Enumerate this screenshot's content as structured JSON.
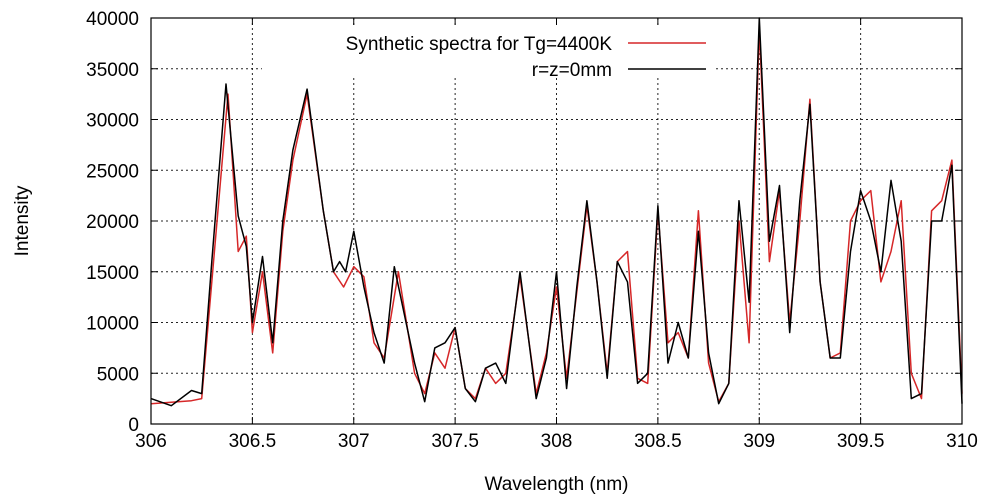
{
  "chart_data": {
    "type": "line",
    "title": "",
    "xlabel": "Wavelength (nm)",
    "ylabel": "Intensity",
    "xlim": [
      306,
      310
    ],
    "ylim": [
      0,
      40000
    ],
    "xticks": [
      306,
      306.5,
      307,
      307.5,
      308,
      308.5,
      309,
      309.5,
      310
    ],
    "xtick_labels": [
      "306",
      "306.5",
      "307",
      "307.5",
      "308",
      "308.5",
      "309",
      "309.5",
      "310"
    ],
    "yticks": [
      0,
      5000,
      10000,
      15000,
      20000,
      25000,
      30000,
      35000,
      40000
    ],
    "ytick_labels": [
      "0",
      "5000",
      "10000",
      "15000",
      "20000",
      "25000",
      "30000",
      "35000",
      "40000"
    ],
    "grid": true,
    "legend_position": "top-center",
    "series": [
      {
        "name": "Synthetic spectra for Tg=4400K",
        "color": "#d62728",
        "x": [
          306.0,
          306.2,
          306.25,
          306.3,
          306.38,
          306.43,
          306.47,
          306.5,
          306.55,
          306.6,
          306.65,
          306.7,
          306.77,
          306.85,
          306.9,
          306.95,
          307.0,
          307.05,
          307.1,
          307.15,
          307.22,
          307.3,
          307.35,
          307.4,
          307.45,
          307.5,
          307.55,
          307.6,
          307.65,
          307.7,
          307.75,
          307.82,
          307.9,
          307.95,
          308.0,
          308.05,
          308.1,
          308.15,
          308.2,
          308.25,
          308.3,
          308.35,
          308.4,
          308.45,
          308.5,
          308.55,
          308.6,
          308.65,
          308.7,
          308.75,
          308.8,
          308.85,
          308.9,
          308.95,
          309.0,
          309.05,
          309.1,
          309.15,
          309.2,
          309.25,
          309.3,
          309.35,
          309.4,
          309.45,
          309.5,
          309.55,
          309.6,
          309.65,
          309.7,
          309.75,
          309.8,
          309.85,
          309.9,
          309.95,
          310.0
        ],
        "y": [
          2000,
          2300,
          2500,
          14000,
          32500,
          17000,
          18500,
          9000,
          15000,
          7000,
          19000,
          26000,
          32500,
          21000,
          15000,
          13500,
          15500,
          14500,
          8000,
          6500,
          15000,
          5000,
          3000,
          7000,
          5500,
          9500,
          3500,
          2500,
          5500,
          4000,
          5000,
          14500,
          3000,
          7000,
          13500,
          4500,
          13000,
          21500,
          14000,
          5000,
          16000,
          17000,
          4500,
          4000,
          21000,
          8000,
          9000,
          6500,
          21000,
          6000,
          2200,
          4000,
          20000,
          8000,
          39000,
          16000,
          23000,
          10000,
          20000,
          32000,
          14000,
          6500,
          7000,
          20000,
          22000,
          23000,
          14000,
          17000,
          22000,
          5000,
          2500,
          21000,
          22000,
          26000,
          3000
        ]
      },
      {
        "name": "r=z=0mm",
        "color": "#000000",
        "x": [
          306.0,
          306.1,
          306.2,
          306.25,
          306.3,
          306.37,
          306.43,
          306.47,
          306.5,
          306.55,
          306.6,
          306.65,
          306.7,
          306.77,
          306.85,
          306.9,
          306.93,
          306.96,
          307.0,
          307.05,
          307.1,
          307.15,
          307.2,
          307.3,
          307.35,
          307.4,
          307.45,
          307.5,
          307.55,
          307.6,
          307.65,
          307.7,
          307.75,
          307.82,
          307.9,
          307.95,
          308.0,
          308.05,
          308.1,
          308.15,
          308.2,
          308.25,
          308.3,
          308.35,
          308.4,
          308.45,
          308.5,
          308.55,
          308.6,
          308.65,
          308.7,
          308.75,
          308.8,
          308.85,
          308.9,
          308.95,
          309.0,
          309.05,
          309.1,
          309.15,
          309.2,
          309.25,
          309.3,
          309.35,
          309.4,
          309.45,
          309.5,
          309.55,
          309.6,
          309.65,
          309.7,
          309.75,
          309.8,
          309.85,
          309.9,
          309.95,
          310.0
        ],
        "y": [
          2500,
          1800,
          3300,
          3000,
          16000,
          33500,
          20500,
          17500,
          10000,
          16500,
          8000,
          20000,
          27000,
          33000,
          21000,
          15000,
          16000,
          15000,
          19000,
          13500,
          9000,
          6000,
          15500,
          6000,
          2200,
          7500,
          8000,
          9500,
          3500,
          2200,
          5500,
          6000,
          4000,
          15000,
          2500,
          6500,
          15000,
          3500,
          13500,
          22000,
          14000,
          4500,
          16000,
          14000,
          4000,
          5000,
          21500,
          6000,
          10000,
          6500,
          19000,
          7000,
          2000,
          4000,
          22000,
          12000,
          40000,
          18000,
          23500,
          9000,
          22000,
          31500,
          14000,
          6500,
          6500,
          17000,
          23000,
          20000,
          15000,
          24000,
          18000,
          2500,
          3000,
          20000,
          20000,
          25500,
          2000
        ]
      }
    ]
  }
}
